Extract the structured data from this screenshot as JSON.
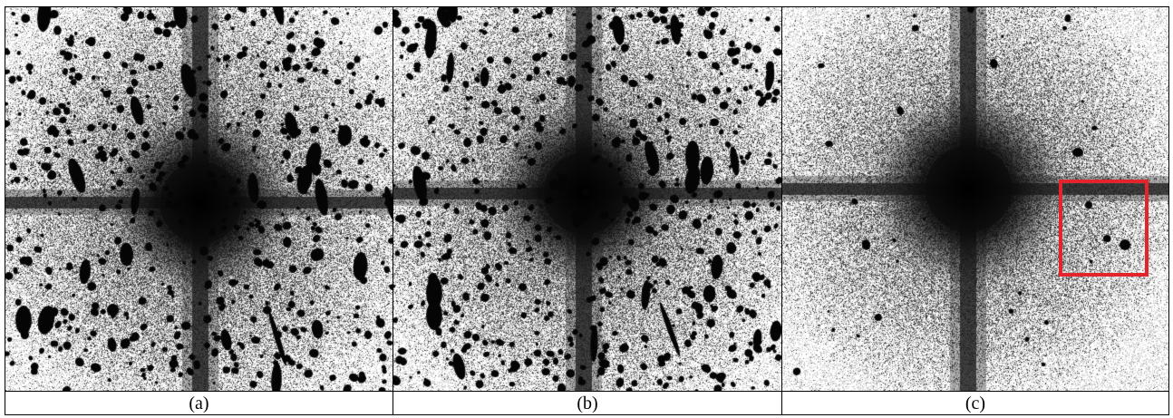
{
  "figure": {
    "panels": [
      {
        "id": "a",
        "caption": "(a)",
        "highlight": false
      },
      {
        "id": "b",
        "caption": "(b)",
        "highlight": false
      },
      {
        "id": "c",
        "caption": "(c)",
        "highlight": true
      }
    ],
    "colors": {
      "border": "#000000",
      "highlight": "#e3242b",
      "background": "#ffffff"
    }
  }
}
